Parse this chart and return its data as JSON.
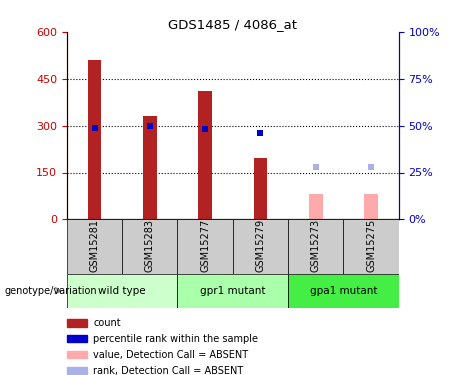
{
  "title": "GDS1485 / 4086_at",
  "samples": [
    "GSM15281",
    "GSM15283",
    "GSM15277",
    "GSM15279",
    "GSM15273",
    "GSM15275"
  ],
  "bar_values": [
    510,
    330,
    410,
    195,
    null,
    null
  ],
  "bar_values_absent": [
    null,
    null,
    null,
    null,
    80,
    80
  ],
  "percentile_values": [
    49,
    50,
    48,
    46,
    null,
    null
  ],
  "percentile_values_absent": [
    null,
    null,
    null,
    null,
    28,
    28
  ],
  "bar_color": "#b22222",
  "bar_color_absent": "#ffaaaa",
  "percentile_color": "#0000cd",
  "percentile_color_absent": "#aab0e8",
  "ylim_left": [
    0,
    600
  ],
  "ylim_right": [
    0,
    100
  ],
  "yticks_left": [
    0,
    150,
    300,
    450,
    600
  ],
  "yticks_right": [
    0,
    25,
    50,
    75,
    100
  ],
  "groups": [
    {
      "label": "wild type",
      "start": 0,
      "end": 2,
      "color": "#ccffcc"
    },
    {
      "label": "gpr1 mutant",
      "start": 2,
      "end": 4,
      "color": "#aaffaa"
    },
    {
      "label": "gpa1 mutant",
      "start": 4,
      "end": 6,
      "color": "#44ee44"
    }
  ],
  "group_header": "genotype/variation",
  "bar_width": 0.25,
  "tick_box_color": "#cccccc",
  "legend_items": [
    {
      "label": "count",
      "color": "#b22222"
    },
    {
      "label": "percentile rank within the sample",
      "color": "#0000cd"
    },
    {
      "label": "value, Detection Call = ABSENT",
      "color": "#ffaaaa"
    },
    {
      "label": "rank, Detection Call = ABSENT",
      "color": "#aab0e8"
    }
  ]
}
